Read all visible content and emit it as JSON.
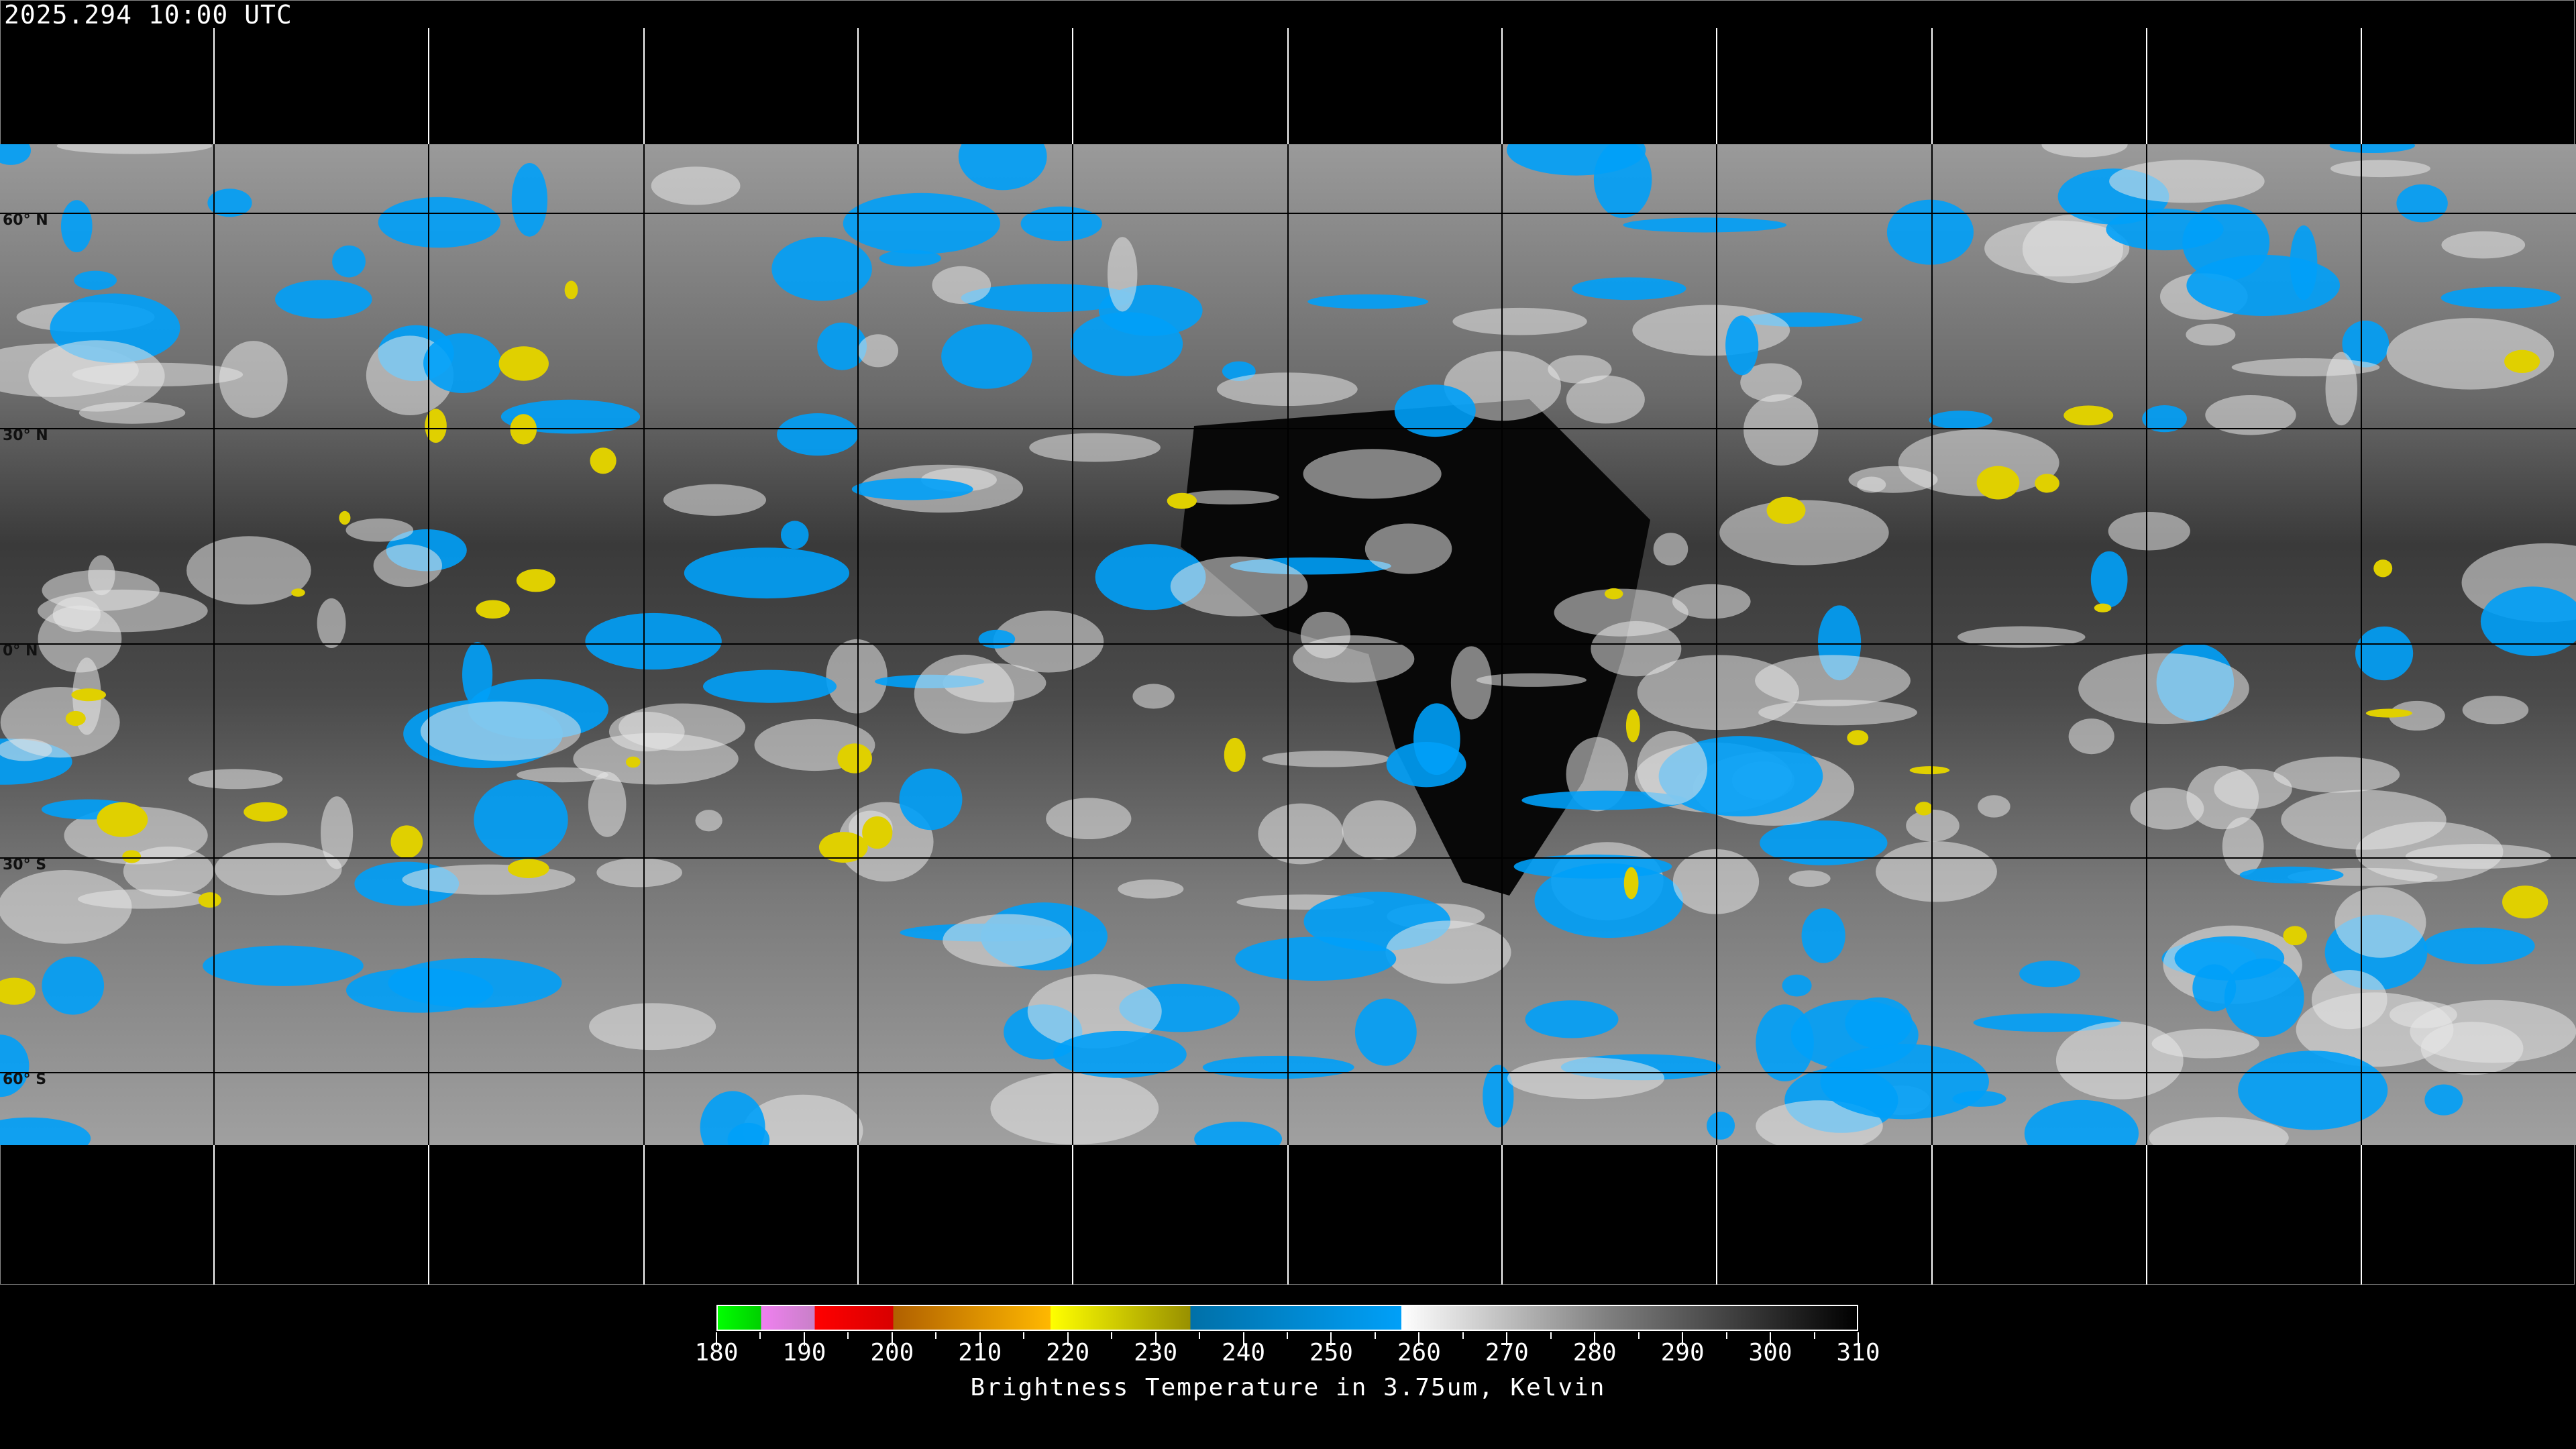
{
  "timestamp": "2025.294 10:00 UTC",
  "latitude_labels": [
    "60° N",
    "30° N",
    "0° N",
    "30° S",
    "60° S"
  ],
  "colorbar": {
    "title": "Brightness Temperature in 3.75um, Kelvin",
    "min": 180,
    "max": 310,
    "tick_labels": [
      "180",
      "190",
      "200",
      "210",
      "220",
      "230",
      "240",
      "250",
      "260",
      "270",
      "280",
      "290",
      "300",
      "310"
    ],
    "segments": [
      {
        "from": 180,
        "to": 185,
        "color": "#00ff00"
      },
      {
        "from": 185,
        "to": 191,
        "color": "#f080f0"
      },
      {
        "from": 191,
        "to": 200,
        "color": "#ff0000"
      },
      {
        "from": 200,
        "to": 219,
        "color": "#ffb800"
      },
      {
        "from": 219,
        "to": 235,
        "color": "#ffff00"
      },
      {
        "from": 235,
        "to": 259,
        "color": "#00a0f8"
      },
      {
        "from": 259,
        "to": 310,
        "color": "#ffffff"
      }
    ]
  },
  "colors": {
    "cold_cloud": "#00a0f8",
    "background": "#000000",
    "gridline": "#000000"
  }
}
